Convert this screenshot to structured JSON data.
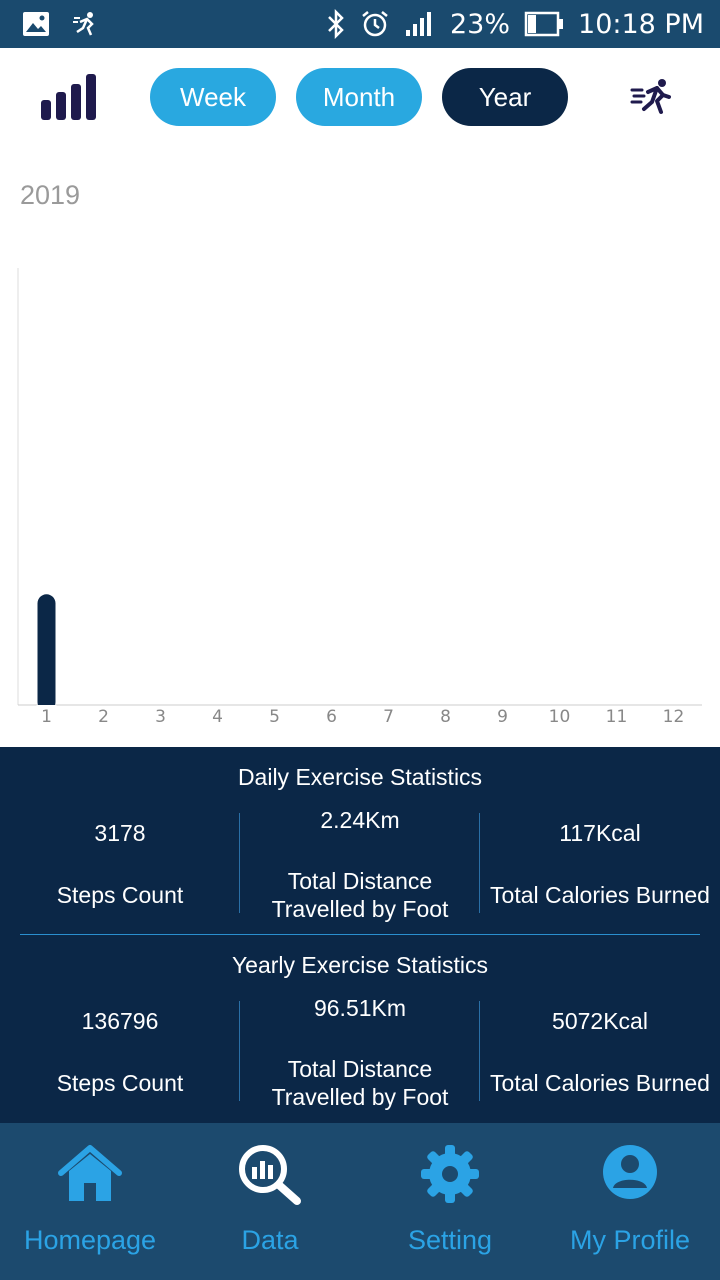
{
  "status_bar": {
    "battery": "23%",
    "time": "10:18 PM",
    "icons": [
      "image-icon",
      "runner-notification-icon",
      "bluetooth-icon",
      "alarm-icon",
      "signal-icon",
      "battery-icon"
    ]
  },
  "toolbar": {
    "tabs": [
      {
        "label": "Week",
        "active": false
      },
      {
        "label": "Month",
        "active": false
      },
      {
        "label": "Year",
        "active": true
      }
    ],
    "left_icon": "bar-chart-icon",
    "right_icon": "runner-icon"
  },
  "year_label": "2019",
  "chart_data": {
    "type": "bar",
    "categories": [
      "1",
      "2",
      "3",
      "4",
      "5",
      "6",
      "7",
      "8",
      "9",
      "10",
      "11",
      "12"
    ],
    "values": [
      136796,
      0,
      0,
      0,
      0,
      0,
      0,
      0,
      0,
      0,
      0,
      0
    ],
    "ylim": [
      0,
      540000
    ],
    "title": "",
    "xlabel": "",
    "ylabel": "",
    "grid": false,
    "bar_color": "#0b2747"
  },
  "daily": {
    "title": "Daily Exercise Statistics",
    "steps_value": "3178",
    "steps_label": "Steps Count",
    "distance_value": "2.24Km",
    "distance_label_1": "Total Distance",
    "distance_label_2": "Travelled by Foot",
    "calories_value": "117Kcal",
    "calories_label": "Total Calories Burned"
  },
  "yearly": {
    "title": "Yearly Exercise Statistics",
    "steps_value": "136796",
    "steps_label": "Steps Count",
    "distance_value": "96.51Km",
    "distance_label_1": "Total Distance",
    "distance_label_2": "Travelled by Foot",
    "calories_value": "5072Kcal",
    "calories_label": "Total Calories Burned"
  },
  "nav": {
    "items": [
      {
        "label": "Homepage",
        "icon": "home-icon"
      },
      {
        "label": "Data",
        "icon": "data-search-icon"
      },
      {
        "label": "Setting",
        "icon": "gear-icon"
      },
      {
        "label": "My Profile",
        "icon": "profile-icon"
      }
    ]
  },
  "colors": {
    "accent": "#29a8e0",
    "dark": "#0b2747",
    "statusbar": "#1a4a6e",
    "nav_bg": "#1c4a6e",
    "nav_text": "#2ba3e5"
  }
}
